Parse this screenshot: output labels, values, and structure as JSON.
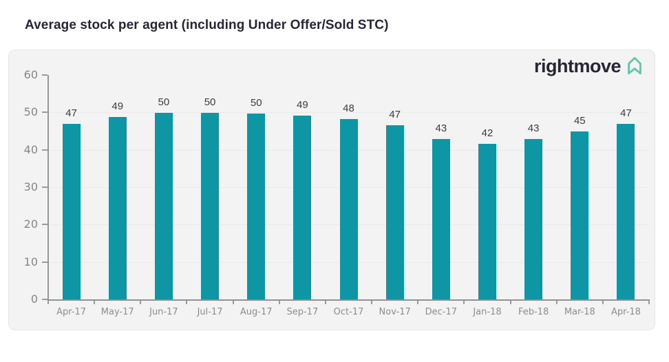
{
  "page_title": "Average stock per agent (including Under Offer/Sold STC)",
  "logo": {
    "text": "rightmove",
    "icon": "house-arrow-icon"
  },
  "chart_data": {
    "type": "bar",
    "title": "Average stock per agent (including Under Offer/Sold STC)",
    "categories": [
      "Apr-17",
      "May-17",
      "Jun-17",
      "Jul-17",
      "Aug-17",
      "Sep-17",
      "Oct-17",
      "Nov-17",
      "Dec-17",
      "Jan-18",
      "Feb-18",
      "Mar-18",
      "Apr-18"
    ],
    "values": [
      46.9,
      48.7,
      49.9,
      49.9,
      49.7,
      49.2,
      48.2,
      46.6,
      42.9,
      41.6,
      42.9,
      44.9,
      46.9
    ],
    "bar_labels": [
      "47",
      "49",
      "50",
      "50",
      "50",
      "49",
      "48",
      "47",
      "43",
      "42",
      "43",
      "45",
      "47"
    ],
    "xlabel": "",
    "ylabel": "",
    "ylim": [
      0,
      60
    ],
    "yticks": [
      0,
      10,
      20,
      30,
      40,
      50,
      60
    ],
    "grid": "faint-horizontal",
    "legend": "none",
    "bar_color": "#0e96a4"
  },
  "colors": {
    "title_text": "#262637",
    "panel_bg": "#f2f3f2",
    "panel_border": "#e4e5e5",
    "bar": "#0e96a4",
    "axis": "#979797",
    "tick_label": "#878787",
    "value_label": "#3c3c3c",
    "gridline": "#e9ebeb",
    "logo_text": "#262637",
    "logo_mark": "#5fc6a9"
  }
}
